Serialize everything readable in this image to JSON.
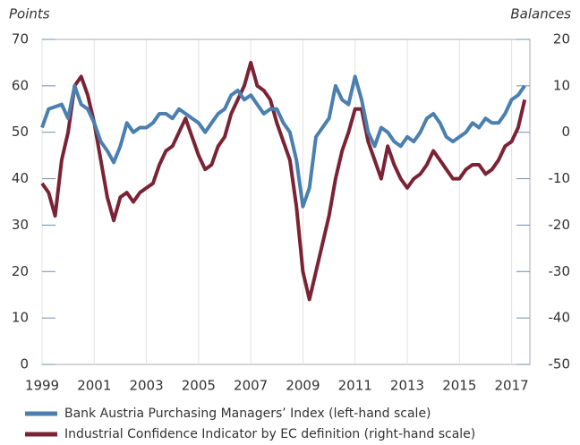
{
  "chart_data": {
    "type": "line",
    "y_label": "Points",
    "y2_label": "Balances",
    "x": [
      1999,
      1999.25,
      1999.5,
      1999.75,
      2000,
      2000.25,
      2000.5,
      2000.75,
      2001,
      2001.25,
      2001.5,
      2001.75,
      2002,
      2002.25,
      2002.5,
      2002.75,
      2003,
      2003.25,
      2003.5,
      2003.75,
      2004,
      2004.25,
      2004.5,
      2004.75,
      2005,
      2005.25,
      2005.5,
      2005.75,
      2006,
      2006.25,
      2006.5,
      2006.75,
      2007,
      2007.25,
      2007.5,
      2007.75,
      2008,
      2008.25,
      2008.5,
      2008.75,
      2009,
      2009.25,
      2009.5,
      2009.75,
      2010,
      2010.25,
      2010.5,
      2010.75,
      2011,
      2011.25,
      2011.5,
      2011.75,
      2012,
      2012.25,
      2012.5,
      2012.75,
      2013,
      2013.25,
      2013.5,
      2013.75,
      2014,
      2014.25,
      2014.5,
      2014.75,
      2015,
      2015.25,
      2015.5,
      2015.75,
      2016,
      2016.25,
      2016.5,
      2016.75,
      2017,
      2017.25,
      2017.5
    ],
    "series": [
      {
        "name": "Bank Austria Purchasing Managers’ Index (left-hand scale)",
        "color": "#4a7fb0",
        "axis": "y",
        "values": [
          51,
          55,
          55.5,
          56,
          53,
          60,
          56,
          55,
          52,
          48,
          46,
          43.5,
          47,
          52,
          50,
          51,
          51,
          52,
          54,
          54,
          53,
          55,
          54,
          53,
          52,
          50,
          52,
          54,
          55,
          58,
          59,
          57,
          58,
          56,
          54,
          55,
          55,
          52,
          50,
          44,
          34,
          38,
          49,
          51,
          53,
          60,
          57,
          56,
          62,
          57,
          50,
          47,
          51,
          50,
          48,
          47,
          49,
          48,
          50,
          53,
          54,
          52,
          49,
          48,
          49,
          50,
          52,
          51,
          53,
          52,
          52,
          54,
          57,
          58,
          60
        ]
      },
      {
        "name": "Industrial Confidence Indicator by EC definition (right-hand scale)",
        "color": "#7b2335",
        "axis": "y2",
        "values": [
          -11,
          -13,
          -18,
          -6,
          0,
          10,
          12,
          8,
          2,
          -6,
          -14,
          -19,
          -14,
          -13,
          -15,
          -13,
          -12,
          -11,
          -7,
          -4,
          -3,
          0,
          3,
          -1,
          -5,
          -8,
          -7,
          -3,
          -1,
          4,
          7,
          10,
          15,
          10,
          9,
          7,
          2,
          -2,
          -6,
          -16,
          -30,
          -36,
          -30,
          -24,
          -18,
          -10,
          -4,
          0,
          5,
          5,
          -2,
          -6,
          -10,
          -3,
          -7,
          -10,
          -12,
          -10,
          -9,
          -7,
          -4,
          -6,
          -8,
          -10,
          -10,
          -8,
          -7,
          -7,
          -9,
          -8,
          -6,
          -3,
          -2,
          1,
          7
        ]
      }
    ],
    "xlim": [
      1999,
      2017.7
    ],
    "xticks": [
      1999,
      2001,
      2003,
      2005,
      2007,
      2009,
      2011,
      2013,
      2015,
      2017
    ],
    "ylim": [
      0,
      70
    ],
    "yticks": [
      0,
      10,
      20,
      30,
      40,
      50,
      60,
      70
    ],
    "y2lim": [
      -50,
      20
    ],
    "y2ticks": [
      -50,
      -40,
      -30,
      -20,
      -10,
      0,
      10,
      20
    ],
    "grid": true
  }
}
